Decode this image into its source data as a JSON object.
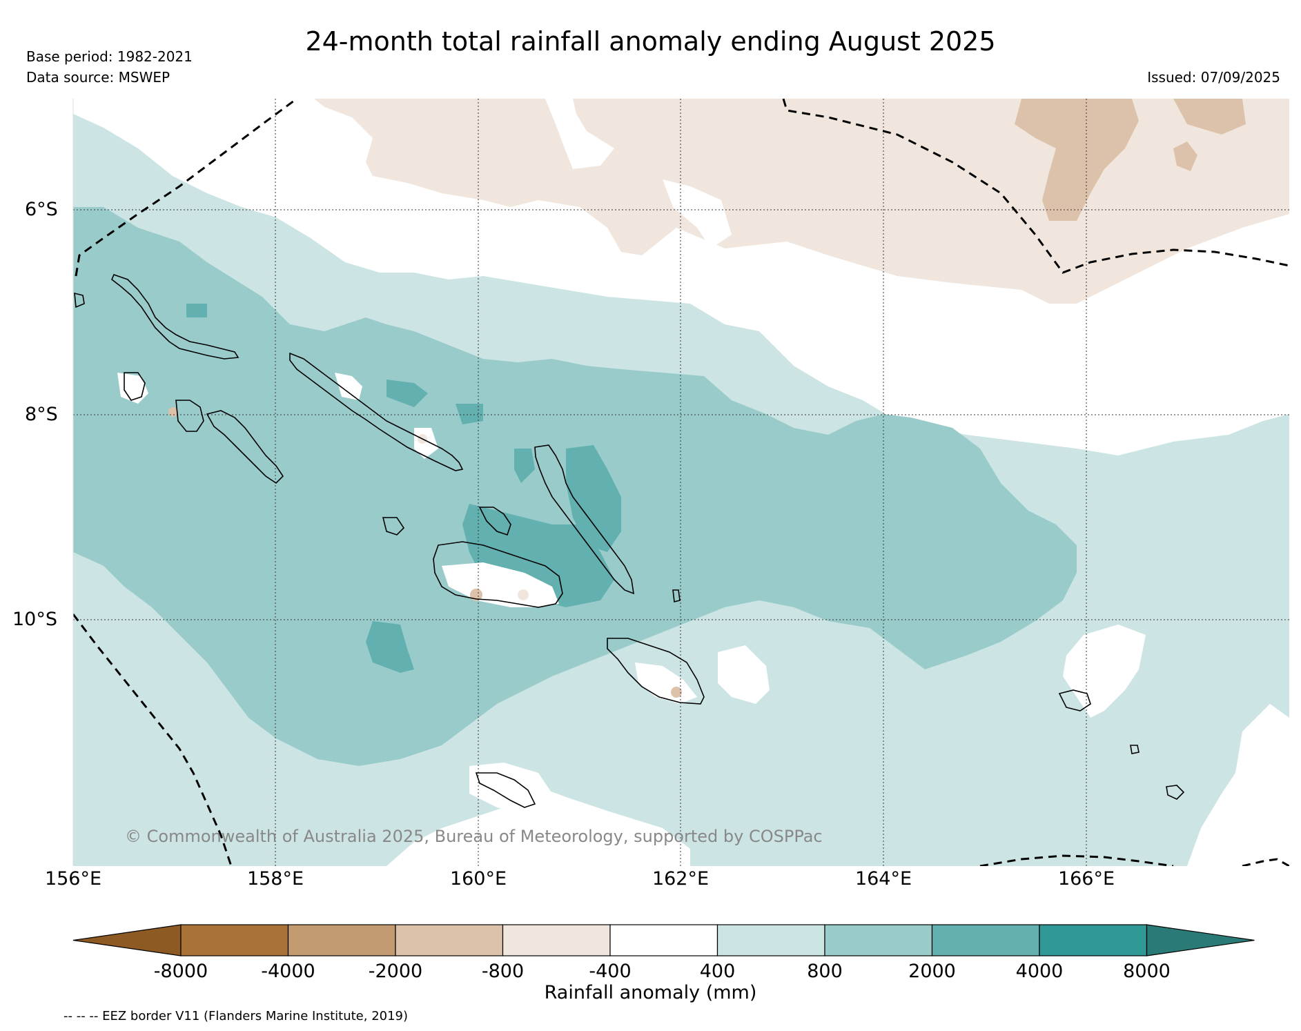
{
  "title": "24-month total rainfall anomaly ending August 2025",
  "meta": {
    "base_period": "Base period: 1982-2021",
    "data_source": "Data source: MSWEP",
    "issued": "Issued: 07/09/2025"
  },
  "map": {
    "lat_labels": [
      "6°S",
      "8°S",
      "10°S"
    ],
    "lon_labels": [
      "156°E",
      "158°E",
      "160°E",
      "162°E",
      "164°E",
      "166°E"
    ],
    "credit": "© Commonwealth of Australia 2025, Bureau of Meteorology, supported by COSPPac"
  },
  "colorbar": {
    "label": "Rainfall anomaly (mm)",
    "ticks": [
      "-8000",
      "-4000",
      "-2000",
      "-800",
      "-400",
      "400",
      "800",
      "2000",
      "4000",
      "8000"
    ],
    "colors": [
      "#8c5a22",
      "#a97338",
      "#c49a70",
      "#dcc2aa",
      "#f0e6dd",
      "#ffffff",
      "#cce5e4",
      "#9acbcb",
      "#62b0b0",
      "#309895",
      "#2a7a77"
    ]
  },
  "legend_note": "-- -- -- EEZ border V11 (Flanders Marine Institute, 2019)"
}
